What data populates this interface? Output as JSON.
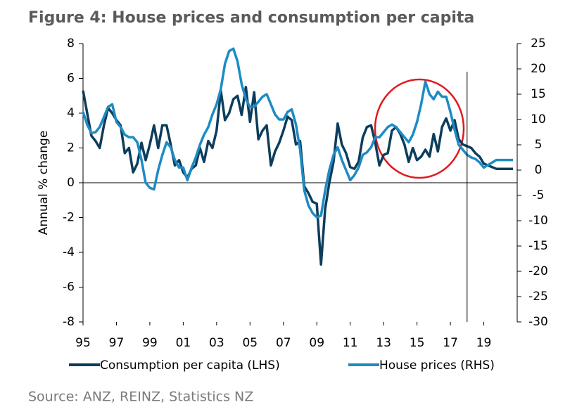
{
  "chart_data": {
    "type": "line",
    "title": "Figure 4: House prices and consumption per capita",
    "y_label": "Annual % change",
    "source": "Source: ANZ, REINZ, Statistics NZ",
    "x": [
      1995,
      1995.25,
      1995.5,
      1995.75,
      1996,
      1996.25,
      1996.5,
      1996.75,
      1997,
      1997.25,
      1997.5,
      1997.75,
      1998,
      1998.25,
      1998.5,
      1998.75,
      1999,
      1999.25,
      1999.5,
      1999.75,
      2000,
      2000.25,
      2000.5,
      2000.75,
      2001,
      2001.25,
      2001.5,
      2001.75,
      2002,
      2002.25,
      2002.5,
      2002.75,
      2003,
      2003.25,
      2003.5,
      2003.75,
      2004,
      2004.25,
      2004.5,
      2004.75,
      2005,
      2005.25,
      2005.5,
      2005.75,
      2006,
      2006.25,
      2006.5,
      2006.75,
      2007,
      2007.25,
      2007.5,
      2007.75,
      2008,
      2008.25,
      2008.5,
      2008.75,
      2009,
      2009.25,
      2009.5,
      2009.75,
      2010,
      2010.25,
      2010.5,
      2010.75,
      2011,
      2011.25,
      2011.5,
      2011.75,
      2012,
      2012.25,
      2012.5,
      2012.75,
      2013,
      2013.25,
      2013.5,
      2013.75,
      2014,
      2014.25,
      2014.5,
      2014.75,
      2015,
      2015.25,
      2015.5,
      2015.75,
      2016,
      2016.25,
      2016.5,
      2016.75,
      2017,
      2017.25,
      2017.5,
      2017.75,
      2018,
      2018.25,
      2018.5,
      2018.75,
      2019,
      2019.25,
      2019.5,
      2019.75,
      2020,
      2020.25,
      2020.5,
      2020.75
    ],
    "series": [
      {
        "name": "Consumption per capita (LHS)",
        "color": "#0d3d5c",
        "axis": "y",
        "values": [
          5.3,
          4.0,
          2.7,
          2.4,
          2.0,
          3.3,
          4.3,
          4.0,
          3.6,
          3.3,
          1.7,
          2.0,
          0.6,
          1.1,
          2.3,
          1.3,
          2.2,
          3.3,
          2.0,
          3.3,
          3.3,
          2.2,
          1.0,
          1.3,
          0.6,
          0.3,
          0.8,
          1.0,
          2.0,
          1.2,
          2.4,
          2.0,
          3.0,
          5.3,
          3.6,
          4.0,
          4.8,
          5.0,
          3.9,
          5.5,
          3.5,
          5.2,
          2.5,
          3.0,
          3.3,
          1.0,
          1.8,
          2.3,
          3.0,
          3.8,
          3.6,
          2.2,
          2.4,
          -0.2,
          -0.6,
          -1.1,
          -1.2,
          -4.7,
          -1.5,
          0.0,
          1.2,
          3.4,
          2.2,
          1.7,
          0.9,
          0.8,
          1.2,
          2.6,
          3.2,
          3.3,
          2.3,
          1.0,
          1.6,
          1.7,
          3.0,
          3.2,
          2.8,
          2.2,
          1.2,
          2.0,
          1.3,
          1.5,
          1.9,
          1.5,
          2.8,
          1.8,
          3.2,
          3.7,
          3.0,
          3.6,
          2.5,
          2.2,
          2.1,
          2.0,
          1.7,
          1.5,
          1.1,
          1.0,
          0.9,
          0.8,
          0.8,
          0.8,
          0.8,
          0.8
        ]
      },
      {
        "name": "House prices (RHS)",
        "color": "#1d8bc4",
        "axis": "y2",
        "values": [
          11.5,
          9,
          7.3,
          7.5,
          8.5,
          10.5,
          12.5,
          13,
          9.5,
          8.5,
          7,
          6.5,
          6.5,
          5.5,
          2,
          -2.5,
          -3.5,
          -3.8,
          0,
          3,
          5.5,
          4.5,
          2,
          0.5,
          0.5,
          -2,
          0.5,
          2.5,
          5,
          7,
          8.5,
          11,
          13,
          16,
          21,
          23.5,
          24,
          21.5,
          17,
          14,
          12.5,
          12.5,
          13.5,
          14.5,
          15,
          13,
          11,
          10,
          10,
          11.5,
          12,
          9,
          4,
          -4,
          -7,
          -8.5,
          -9.3,
          -9,
          -4,
          0,
          3,
          4.5,
          2,
          0,
          -2,
          -1,
          0.5,
          3,
          3.5,
          4.5,
          6.5,
          6.5,
          7.5,
          8.5,
          9,
          8.5,
          7.5,
          6.5,
          5.5,
          7,
          9.5,
          13,
          17.5,
          15,
          14,
          15.5,
          14.5,
          14.5,
          11.5,
          8,
          5,
          4,
          3,
          2.5,
          2.2,
          1.5,
          0.5,
          1,
          1.5,
          2,
          2,
          2,
          2,
          2
        ]
      }
    ],
    "xlim": [
      1995,
      2021
    ],
    "xticks": [
      {
        "value": 1995,
        "label": "95"
      },
      {
        "value": 1997,
        "label": "97"
      },
      {
        "value": 1999,
        "label": "99"
      },
      {
        "value": 2001,
        "label": "01"
      },
      {
        "value": 2003,
        "label": "03"
      },
      {
        "value": 2005,
        "label": "05"
      },
      {
        "value": 2007,
        "label": "07"
      },
      {
        "value": 2009,
        "label": "09"
      },
      {
        "value": 2011,
        "label": "11"
      },
      {
        "value": 2013,
        "label": "13"
      },
      {
        "value": 2015,
        "label": "15"
      },
      {
        "value": 2017,
        "label": "17"
      },
      {
        "value": 2019,
        "label": "19"
      }
    ],
    "ylim": [
      -8,
      8
    ],
    "yticks": [
      -8,
      -6,
      -4,
      -2,
      0,
      2,
      4,
      6,
      8
    ],
    "y2lim": [
      -30,
      25
    ],
    "y2ticks": [
      -30,
      -25,
      -20,
      -15,
      -10,
      -5,
      0,
      5,
      10,
      15,
      20,
      25
    ],
    "vertical_line": 2018,
    "legend": "bottom"
  }
}
